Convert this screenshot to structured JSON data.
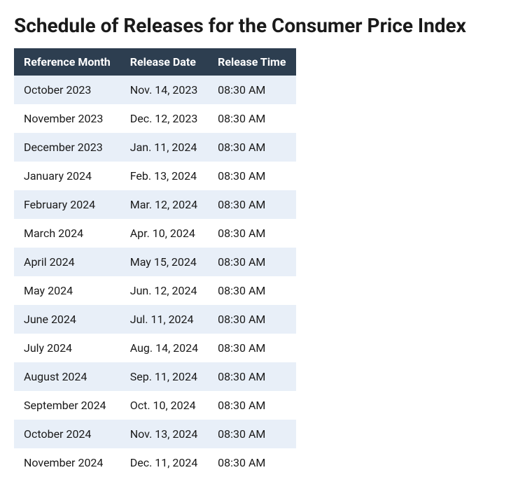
{
  "title": "Schedule of Releases for the Consumer Price Index",
  "table": {
    "type": "table",
    "header_bg": "#2d3e50",
    "header_fg": "#ffffff",
    "row_bg_odd": "#e8eff8",
    "row_bg_even": "#ffffff",
    "columns": [
      "Reference Month",
      "Release Date",
      "Release Time"
    ],
    "rows": [
      [
        "October 2023",
        "Nov. 14, 2023",
        "08:30 AM"
      ],
      [
        "November 2023",
        "Dec. 12, 2023",
        "08:30 AM"
      ],
      [
        "December 2023",
        "Jan. 11, 2024",
        "08:30 AM"
      ],
      [
        "January 2024",
        "Feb. 13, 2024",
        "08:30 AM"
      ],
      [
        "February 2024",
        "Mar. 12, 2024",
        "08:30 AM"
      ],
      [
        "March 2024",
        "Apr. 10, 2024",
        "08:30 AM"
      ],
      [
        "April 2024",
        "May 15, 2024",
        "08:30 AM"
      ],
      [
        "May 2024",
        "Jun. 12, 2024",
        "08:30 AM"
      ],
      [
        "June 2024",
        "Jul. 11, 2024",
        "08:30 AM"
      ],
      [
        "July 2024",
        "Aug. 14, 2024",
        "08:30 AM"
      ],
      [
        "August 2024",
        "Sep. 11, 2024",
        "08:30 AM"
      ],
      [
        "September 2024",
        "Oct. 10, 2024",
        "08:30 AM"
      ],
      [
        "October 2024",
        "Nov. 13, 2024",
        "08:30 AM"
      ],
      [
        "November 2024",
        "Dec. 11, 2024",
        "08:30 AM"
      ]
    ]
  }
}
